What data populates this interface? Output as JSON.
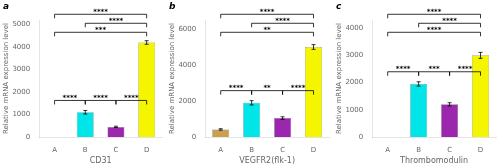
{
  "chart_data": [
    {
      "type": "bar",
      "title": "a",
      "xlabel": "CD31",
      "ylabel": "Relative mRNA expression level",
      "categories": [
        "A",
        "B",
        "C",
        "D"
      ],
      "values": [
        0,
        1100,
        450,
        4200
      ],
      "errors": [
        0,
        80,
        30,
        80
      ],
      "colors": [
        "#f5f5f5",
        "#00e5e8",
        "#9b27af",
        "#f5f500"
      ],
      "ylim": [
        0,
        5200
      ],
      "yticks": [
        0,
        1000,
        2000,
        3000,
        4000,
        5000
      ],
      "grid": false,
      "annotations": [
        {
          "text": "****",
          "from": "A",
          "to": "B"
        },
        {
          "text": "****",
          "from": "B",
          "to": "C"
        },
        {
          "text": "****",
          "from": "C",
          "to": "D"
        },
        {
          "text": "***",
          "from": "A",
          "to": "D"
        },
        {
          "text": "****",
          "from": "B",
          "to": "D"
        },
        {
          "text": "****",
          "from": "A",
          "to": "D"
        }
      ]
    },
    {
      "type": "bar",
      "title": "b",
      "xlabel": "VEGFR2(flk-1)",
      "ylabel": "Relative mRNA expression level",
      "categories": [
        "A",
        "B",
        "C",
        "D"
      ],
      "values": [
        420,
        1900,
        1050,
        5000
      ],
      "errors": [
        40,
        120,
        70,
        130
      ],
      "colors": [
        "#c8a050",
        "#00e5e8",
        "#9b27af",
        "#f5f500"
      ],
      "ylim": [
        0,
        6500
      ],
      "yticks": [
        0,
        2000,
        4000,
        6000
      ],
      "grid": false,
      "annotations": [
        {
          "text": "****",
          "from": "A",
          "to": "B"
        },
        {
          "text": "**",
          "from": "B",
          "to": "C"
        },
        {
          "text": "****",
          "from": "C",
          "to": "D"
        },
        {
          "text": "**",
          "from": "A",
          "to": "D"
        },
        {
          "text": "****",
          "from": "B",
          "to": "D"
        },
        {
          "text": "****",
          "from": "A",
          "to": "D"
        }
      ]
    },
    {
      "type": "bar",
      "title": "c",
      "xlabel": "Thrombomodulin",
      "ylabel": "Relative mRNA expression level",
      "categories": [
        "A",
        "B",
        "C",
        "D"
      ],
      "values": [
        0,
        1950,
        1200,
        3000
      ],
      "errors": [
        0,
        80,
        60,
        110
      ],
      "colors": [
        "#f5f5f5",
        "#00e5e8",
        "#9b27af",
        "#f5f500"
      ],
      "ylim": [
        0,
        4300
      ],
      "yticks": [
        0,
        1000,
        2000,
        3000,
        4000
      ],
      "grid": false,
      "annotations": [
        {
          "text": "****",
          "from": "A",
          "to": "B"
        },
        {
          "text": "***",
          "from": "B",
          "to": "C"
        },
        {
          "text": "****",
          "from": "C",
          "to": "D"
        },
        {
          "text": "****",
          "from": "A",
          "to": "D"
        },
        {
          "text": "****",
          "from": "B",
          "to": "D"
        },
        {
          "text": "****",
          "from": "A",
          "to": "D"
        }
      ]
    }
  ]
}
